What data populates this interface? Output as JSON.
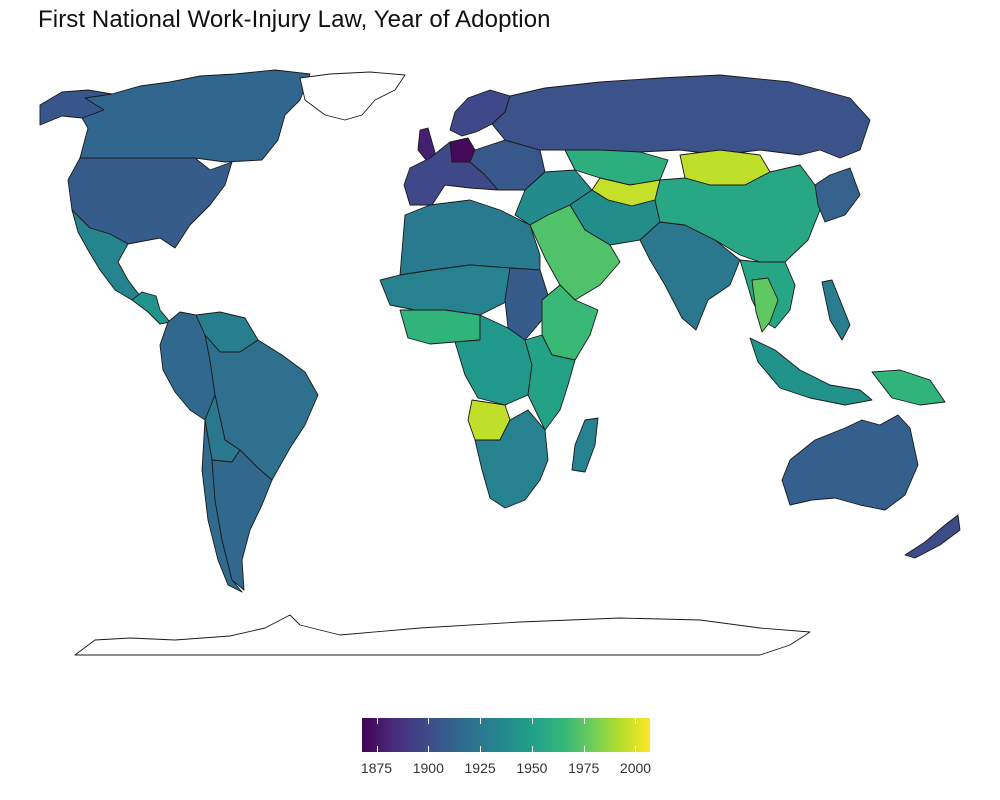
{
  "title": "First National Work-Injury Law, Year of Adoption",
  "legend": {
    "min": 1868,
    "max": 2007,
    "ticks": [
      "1875",
      "1900",
      "1925",
      "1950",
      "1975",
      "2000"
    ],
    "palette": [
      "#440154",
      "#482878",
      "#3e4a89",
      "#31688e",
      "#26828e",
      "#1f9e89",
      "#35b779",
      "#6ece58",
      "#b5de2b",
      "#fde725"
    ]
  },
  "no_data_color": "#ffffff",
  "regions": [
    {
      "id": "canada",
      "year": 1914
    },
    {
      "id": "alaska",
      "year": 1905
    },
    {
      "id": "usa",
      "year": 1908
    },
    {
      "id": "mexico",
      "year": 1931
    },
    {
      "id": "central-america",
      "year": 1940
    },
    {
      "id": "colombia-ecuador-peru",
      "year": 1915
    },
    {
      "id": "venezuela-guianas",
      "year": 1928
    },
    {
      "id": "brazil",
      "year": 1919
    },
    {
      "id": "bolivia",
      "year": 1924
    },
    {
      "id": "argentina",
      "year": 1915
    },
    {
      "id": "chile",
      "year": 1916
    },
    {
      "id": "western-europe",
      "year": 1898
    },
    {
      "id": "germany",
      "year": 1871
    },
    {
      "id": "uk",
      "year": 1880
    },
    {
      "id": "scandinavia",
      "year": 1898
    },
    {
      "id": "eastern-europe",
      "year": 1906
    },
    {
      "id": "russia",
      "year": 1903
    },
    {
      "id": "north-africa",
      "year": 1925
    },
    {
      "id": "sahel",
      "year": 1930
    },
    {
      "id": "west-africa",
      "year": 1958
    },
    {
      "id": "sudan",
      "year": 1908
    },
    {
      "id": "ethiopia-somalia",
      "year": 1962
    },
    {
      "id": "central-africa",
      "year": 1942
    },
    {
      "id": "east-africa",
      "year": 1948
    },
    {
      "id": "angola",
      "year": 1994
    },
    {
      "id": "southern-africa",
      "year": 1930
    },
    {
      "id": "madagascar",
      "year": 1930
    },
    {
      "id": "middle-east",
      "year": 1935
    },
    {
      "id": "arabia",
      "year": 1968
    },
    {
      "id": "kazakhstan",
      "year": 1955
    },
    {
      "id": "central-asia",
      "year": 1995
    },
    {
      "id": "iran-afghanistan",
      "year": 1936
    },
    {
      "id": "india",
      "year": 1923
    },
    {
      "id": "china",
      "year": 1951
    },
    {
      "id": "mongolia",
      "year": 1994
    },
    {
      "id": "japan-korea",
      "year": 1911
    },
    {
      "id": "southeast-asia",
      "year": 1950
    },
    {
      "id": "thailand",
      "year": 1972
    },
    {
      "id": "indonesia",
      "year": 1939
    },
    {
      "id": "philippines",
      "year": 1927
    },
    {
      "id": "papua-new-guinea",
      "year": 1958
    },
    {
      "id": "australia",
      "year": 1910
    },
    {
      "id": "new-zealand",
      "year": 1900
    },
    {
      "id": "greenland",
      "year": null
    },
    {
      "id": "antarctica",
      "year": null
    }
  ]
}
